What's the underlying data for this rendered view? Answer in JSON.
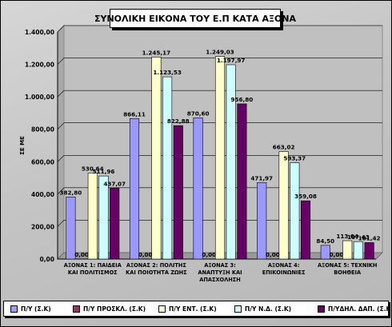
{
  "chart_data": {
    "type": "bar",
    "title": "ΣΥΝΟΛΙΚΗ ΕΙΚΟΝΑ ΤΟΥ Ε.Π ΚΑΤΑ ΑΞΟΝΑ",
    "ylabel": "ΣΕ ΜΕ",
    "xlabel": "",
    "ylim": [
      0,
      1400
    ],
    "y_ticks": [
      "0,00",
      "200,00",
      "400,00",
      "600,00",
      "800,00",
      "1.000,00",
      "1.200,00",
      "1.400,00"
    ],
    "grid": true,
    "legend": "bottom",
    "categories": [
      [
        "ΑΞΟΝΑΣ 1: ΠΑΙΔΕΙΑ",
        "ΚΑΙ ΠΟΛΙΤΙΣΜΟΣ"
      ],
      [
        "ΑΞΟΝΑΣ 2: ΠΟΛΙΤΗΣ",
        "ΚΑΙ ΠΟΙΟΤΗΤΑ ΖΩΗΣ"
      ],
      [
        "ΑΞΟΝΑΣ 3:",
        "ΑΝΑΠΤΥΞΗ ΚΑΙ",
        "ΑΠΑΣΧΟΛΗΣΗ"
      ],
      [
        "ΑΞΟΝΑΣ 4:",
        "ΕΠΙΚΟΙΝΩΝΙΕΣ"
      ],
      [
        "ΑΞΟΝΑΣ 5: ΤΕΧΝΙΚΗ",
        "ΒΟΗΘΕΙΑ"
      ]
    ],
    "series": [
      {
        "name": "Π/Υ (Σ.Κ)",
        "color": "#9999ff",
        "values": [
          382.8,
          866.11,
          870.6,
          471.97,
          84.5
        ],
        "labels": [
          "382,80",
          "866,11",
          "870,60",
          "471,97",
          "84,50"
        ]
      },
      {
        "name": "Π/Υ ΠΡΟΣΚΛ. (Σ.Κ)",
        "color": "#993366",
        "values": [
          0,
          0,
          0,
          0,
          0
        ],
        "labels": [
          "0,00",
          "0,00",
          "0,00",
          "0,00",
          "0,00"
        ]
      },
      {
        "name": "Π/Υ ΕΝΤ. (Σ.Κ)",
        "color": "#ffffcc",
        "values": [
          530.64,
          1245.17,
          1249.03,
          663.02,
          113.04
        ],
        "labels": [
          "530,64",
          "1.245,17",
          "1.249,03",
          "663,02",
          "113,04"
        ]
      },
      {
        "name": "Π/Υ Ν.Δ. (Σ.Κ)",
        "color": "#ccffff",
        "values": [
          511.96,
          1123.53,
          1197.97,
          593.37,
          107.43
        ],
        "labels": [
          "511,96",
          "1.123,53",
          "1.197,97",
          "593,37",
          "107,43"
        ]
      },
      {
        "name": "Π/ΥΔΗΛ. ΔΑΠ. (Σ.Κ)",
        "color": "#660066",
        "values": [
          437.07,
          822.88,
          956.8,
          359.08,
          101.42
        ],
        "labels": [
          "437,07",
          "822,88",
          "956,80",
          "359,08",
          "101,42"
        ]
      }
    ]
  }
}
